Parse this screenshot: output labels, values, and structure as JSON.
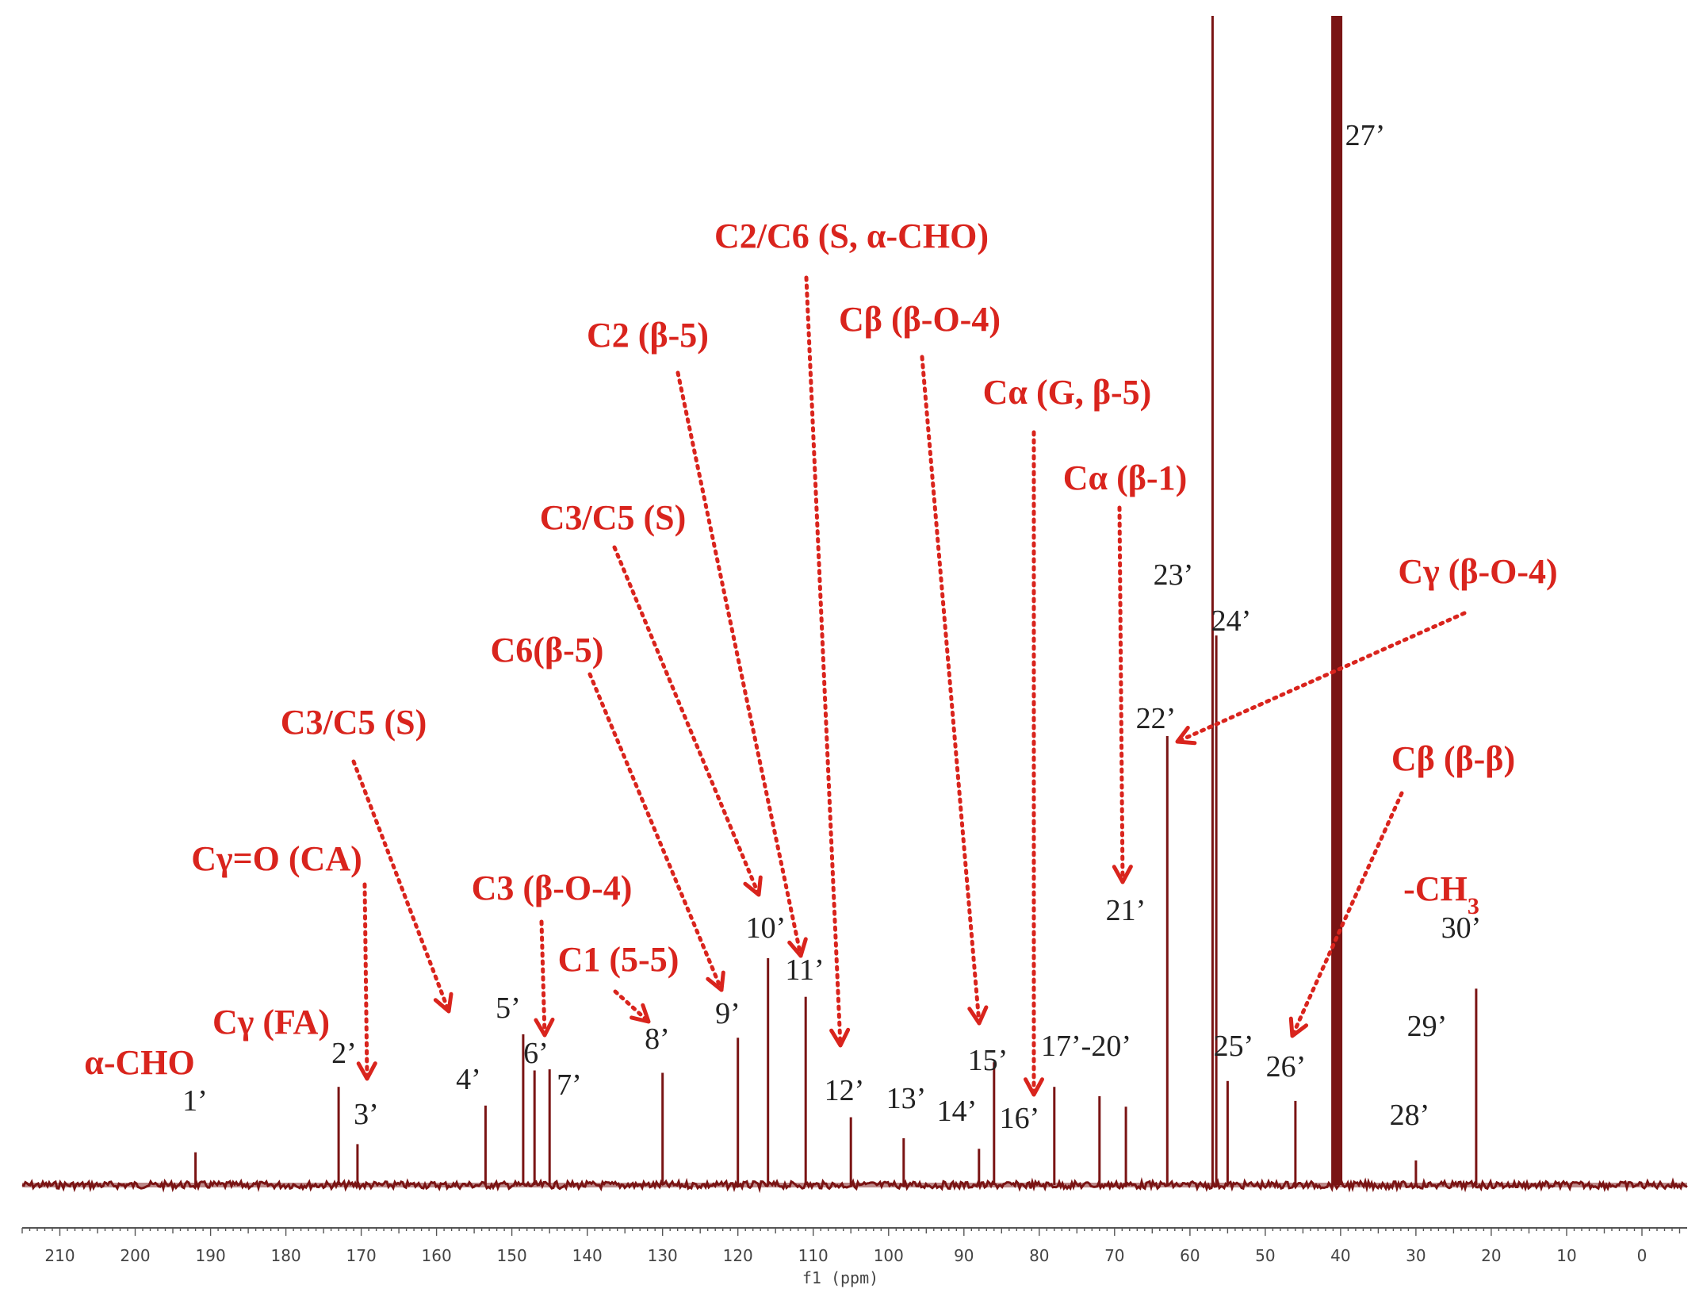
{
  "chart_data": {
    "type": "line",
    "title": "",
    "xlabel": "f1 (ppm)",
    "ylabel": "",
    "xlim": [
      215,
      -6
    ],
    "x_reversed": true,
    "grid": false,
    "line_color": "#7a1414",
    "annotation_color": "#d9241d",
    "x_ticks": [
      210,
      200,
      190,
      180,
      170,
      160,
      150,
      140,
      130,
      120,
      110,
      100,
      90,
      80,
      70,
      60,
      50,
      40,
      30,
      20,
      10,
      0
    ],
    "peaks": [
      {
        "ppm": 192.0,
        "intensity": 2.8
      },
      {
        "ppm": 173.0,
        "intensity": 8.4
      },
      {
        "ppm": 170.5,
        "intensity": 3.5
      },
      {
        "ppm": 153.5,
        "intensity": 6.8
      },
      {
        "ppm": 148.5,
        "intensity": 12.9
      },
      {
        "ppm": 147.0,
        "intensity": 9.8
      },
      {
        "ppm": 145.0,
        "intensity": 9.9
      },
      {
        "ppm": 130.0,
        "intensity": 9.6
      },
      {
        "ppm": 120.0,
        "intensity": 12.6
      },
      {
        "ppm": 116.0,
        "intensity": 19.4
      },
      {
        "ppm": 111.0,
        "intensity": 16.1
      },
      {
        "ppm": 105.0,
        "intensity": 5.8
      },
      {
        "ppm": 98.0,
        "intensity": 4.0
      },
      {
        "ppm": 88.0,
        "intensity": 3.1
      },
      {
        "ppm": 86.0,
        "intensity": 10.5
      },
      {
        "ppm": 78.0,
        "intensity": 8.4
      },
      {
        "ppm": 72.0,
        "intensity": 7.6
      },
      {
        "ppm": 68.5,
        "intensity": 6.7
      },
      {
        "ppm": 63.0,
        "intensity": 38.4
      },
      {
        "ppm": 57.0,
        "intensity": 100.0
      },
      {
        "ppm": 56.5,
        "intensity": 47.0
      },
      {
        "ppm": 55.0,
        "intensity": 8.9
      },
      {
        "ppm": 46.0,
        "intensity": 7.2
      },
      {
        "ppm": 40.5,
        "intensity": 100.0
      },
      {
        "ppm": 30.0,
        "intensity": 2.1
      },
      {
        "ppm": 22.0,
        "intensity": 16.8
      }
    ],
    "peak_labels": [
      {
        "text": "1’"
      },
      {
        "text": "2’"
      },
      {
        "text": "3’"
      },
      {
        "text": "4’"
      },
      {
        "text": "5’"
      },
      {
        "text": "6’"
      },
      {
        "text": "7’"
      },
      {
        "text": "8’"
      },
      {
        "text": "9’"
      },
      {
        "text": "10’"
      },
      {
        "text": "11’"
      },
      {
        "text": "12’"
      },
      {
        "text": "13’"
      },
      {
        "text": "14’"
      },
      {
        "text": "15’"
      },
      {
        "text": "16’"
      },
      {
        "text": "17’-20’"
      },
      {
        "text": "21’"
      },
      {
        "text": "22’"
      },
      {
        "text": "23’"
      },
      {
        "text": "24’"
      },
      {
        "text": "25’"
      },
      {
        "text": "26’"
      },
      {
        "text": "27’"
      },
      {
        "text": "28’"
      },
      {
        "text": "29’"
      },
      {
        "text": "30’"
      }
    ],
    "annotations": [
      {
        "text": "α-CHO"
      },
      {
        "text": "Cγ (FA)"
      },
      {
        "text": "Cγ=O (CA)"
      },
      {
        "text": "C3/C5 (S)"
      },
      {
        "text": "C3 (β-O-4)"
      },
      {
        "text": "C1 (5-5)"
      },
      {
        "text": "C6(β-5)"
      },
      {
        "text": "C3/C5 (S)"
      },
      {
        "text": "C2 (β-5)"
      },
      {
        "text": "C2/C6 (S, α-CHO)"
      },
      {
        "text": "Cβ (β-O-4)"
      },
      {
        "text": "Cα (G, β-5)"
      },
      {
        "text": "Cα (β-1)"
      },
      {
        "text": "Cγ (β-O-4)"
      },
      {
        "text": "Cβ (β-β)"
      },
      {
        "text": "-CH",
        "sub": "3"
      }
    ]
  }
}
